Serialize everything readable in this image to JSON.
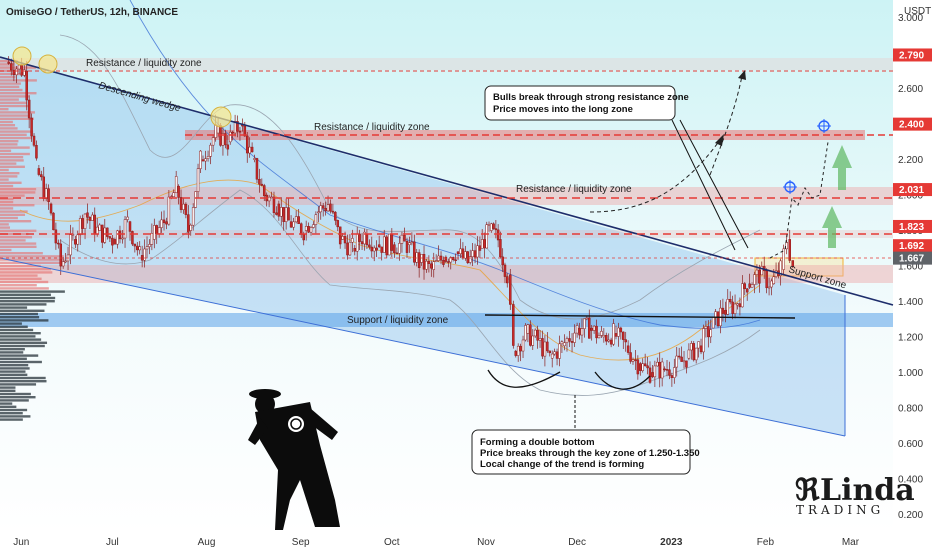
{
  "header": {
    "title": "OmiseGO / TetherUS, 12h, BINANCE",
    "currency": "USDT"
  },
  "chart_data": {
    "type": "line",
    "title": "OmiseGO / TetherUS, 12h, BINANCE",
    "ylabel": "USDT",
    "ylim": [
      0.1,
      3.1
    ],
    "x_ticks": [
      "Jun",
      "Jul",
      "Aug",
      "Sep",
      "Oct",
      "Nov",
      "Dec",
      "2023",
      "Feb",
      "Mar"
    ],
    "y_ticks": [
      "3.000",
      "2.800",
      "2.600",
      "2.400",
      "2.200",
      "2.000",
      "1.800",
      "1.600",
      "1.400",
      "1.200",
      "1.000",
      "0.800",
      "0.600",
      "0.400",
      "0.200"
    ],
    "x_range": [
      "2022-05-25",
      "2023-03-15"
    ],
    "series": [
      {
        "values": [
          [
            "2022-05-27",
            2.75
          ],
          [
            "2022-06-02",
            2.7
          ],
          [
            "2022-06-06",
            2.15
          ],
          [
            "2022-06-10",
            1.95
          ],
          [
            "2022-06-14",
            1.6
          ],
          [
            "2022-06-18",
            1.75
          ],
          [
            "2022-06-22",
            1.9
          ],
          [
            "2022-06-26",
            1.8
          ],
          [
            "2022-07-01",
            1.75
          ],
          [
            "2022-07-06",
            1.85
          ],
          [
            "2022-07-10",
            1.66
          ],
          [
            "2022-07-14",
            1.75
          ],
          [
            "2022-07-18",
            1.85
          ],
          [
            "2022-07-22",
            2.05
          ],
          [
            "2022-07-26",
            1.8
          ],
          [
            "2022-07-30",
            2.2
          ],
          [
            "2022-08-04",
            2.35
          ],
          [
            "2022-08-08",
            2.3
          ],
          [
            "2022-08-12",
            2.4
          ],
          [
            "2022-08-16",
            2.2
          ],
          [
            "2022-08-20",
            2.0
          ],
          [
            "2022-08-24",
            1.95
          ],
          [
            "2022-08-28",
            1.85
          ],
          [
            "2022-09-02",
            1.8
          ],
          [
            "2022-09-06",
            1.9
          ],
          [
            "2022-09-10",
            1.95
          ],
          [
            "2022-09-14",
            1.75
          ],
          [
            "2022-09-18",
            1.7
          ],
          [
            "2022-09-22",
            1.78
          ],
          [
            "2022-09-26",
            1.72
          ],
          [
            "2022-10-01",
            1.72
          ],
          [
            "2022-10-06",
            1.72
          ],
          [
            "2022-10-10",
            1.62
          ],
          [
            "2022-10-14",
            1.58
          ],
          [
            "2022-10-18",
            1.65
          ],
          [
            "2022-10-22",
            1.68
          ],
          [
            "2022-10-26",
            1.62
          ],
          [
            "2022-10-30",
            1.7
          ],
          [
            "2022-11-02",
            1.8
          ],
          [
            "2022-11-05",
            1.75
          ],
          [
            "2022-11-08",
            1.55
          ],
          [
            "2022-11-10",
            1.12
          ],
          [
            "2022-11-14",
            1.22
          ],
          [
            "2022-11-18",
            1.18
          ],
          [
            "2022-11-22",
            1.08
          ],
          [
            "2022-11-26",
            1.15
          ],
          [
            "2022-12-01",
            1.25
          ],
          [
            "2022-12-05",
            1.25
          ],
          [
            "2022-12-09",
            1.2
          ],
          [
            "2022-12-13",
            1.22
          ],
          [
            "2022-12-17",
            1.15
          ],
          [
            "2022-12-21",
            1.05
          ],
          [
            "2022-12-25",
            1.0
          ],
          [
            "2022-12-29",
            1.02
          ],
          [
            "2023-01-02",
            1.03
          ],
          [
            "2023-01-06",
            1.08
          ],
          [
            "2023-01-10",
            1.15
          ],
          [
            "2023-01-14",
            1.25
          ],
          [
            "2023-01-18",
            1.35
          ],
          [
            "2023-01-22",
            1.38
          ],
          [
            "2023-01-26",
            1.5
          ],
          [
            "2023-01-30",
            1.55
          ],
          [
            "2023-02-03",
            1.5
          ],
          [
            "2023-02-06",
            1.58
          ],
          [
            "2023-02-08",
            1.75
          ],
          [
            "2023-02-10",
            1.6
          ]
        ]
      }
    ],
    "price_levels": [
      "2.790",
      "2.400",
      "2.031",
      "1.823",
      "1.692",
      "1.667"
    ],
    "annotations": [
      "Resistance / liquidity zone",
      "Descending wedge",
      "Resistance / liquidity zone",
      "Resistance / liquidity zone",
      "Support / liquidity zone",
      "Support zone",
      "Bulls break through strong resistance zone",
      "Price moves into the long zone",
      "Forming a double bottom",
      "Price breaks through the key zone of 1.250-1.350",
      "Local change of the trend is forming"
    ],
    "grid": false,
    "legend": "none"
  },
  "brand": {
    "name": "Linda",
    "sub": "TRADING"
  },
  "colors": {
    "accent_red": "#e53935",
    "accent_green": "#66bb6a",
    "wedge_blue": "#1e3a8a",
    "zone_blue": "#64a8ea",
    "bg_top": "#ccf2f5"
  }
}
